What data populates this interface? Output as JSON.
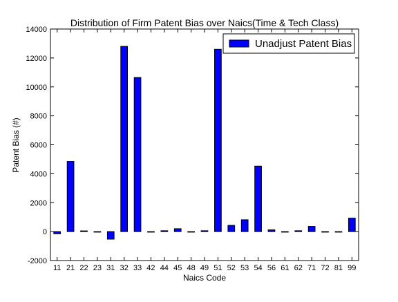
{
  "chart_data": {
    "type": "bar",
    "title": "Distribution of Firm Patent Bias over Naics(Time & Tech Class)",
    "xlabel": "Naics Code",
    "ylabel": "Patent Bias (#)",
    "ylim": [
      -2000,
      14000
    ],
    "yticks": [
      -2000,
      0,
      2000,
      4000,
      6000,
      8000,
      10000,
      12000,
      14000
    ],
    "grid": false,
    "legend_position": "top-right",
    "categories": [
      "11",
      "21",
      "22",
      "23",
      "31",
      "32",
      "33",
      "42",
      "44",
      "45",
      "48",
      "49",
      "51",
      "52",
      "53",
      "54",
      "56",
      "61",
      "62",
      "71",
      "72",
      "81",
      "99"
    ],
    "series": [
      {
        "name": "Unadjust Patent Bias",
        "color": "#0000ff",
        "values": [
          -150,
          4850,
          50,
          -30,
          -520,
          12800,
          10650,
          -20,
          60,
          200,
          -20,
          60,
          12600,
          430,
          820,
          4530,
          120,
          -20,
          60,
          360,
          -20,
          -20,
          930
        ]
      }
    ]
  }
}
